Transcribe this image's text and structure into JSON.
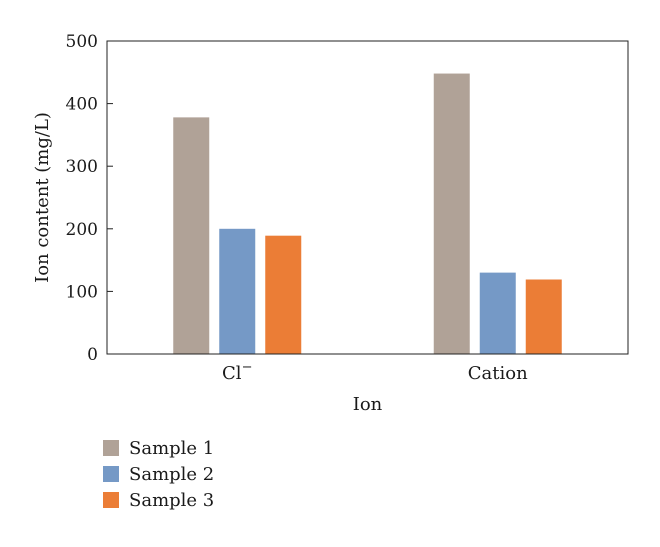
{
  "chart_data": {
    "type": "bar",
    "xlabel": "Ion",
    "ylabel": "Ion content (mg/L)",
    "ylim": [
      0,
      500
    ],
    "yticks": [
      0,
      100,
      200,
      300,
      400,
      500
    ],
    "categories": [
      {
        "base": "Cl",
        "sup": "−"
      },
      {
        "base": "Cation",
        "sup": ""
      }
    ],
    "series": [
      {
        "name": "Sample 1",
        "color": "#b0a297",
        "values": [
          378,
          448
        ]
      },
      {
        "name": "Sample 2",
        "color": "#7599c6",
        "values": [
          200,
          130
        ]
      },
      {
        "name": "Sample 3",
        "color": "#eb7d36",
        "values": [
          189,
          119
        ]
      }
    ],
    "grid": false,
    "legend_position": "bottom-left"
  }
}
